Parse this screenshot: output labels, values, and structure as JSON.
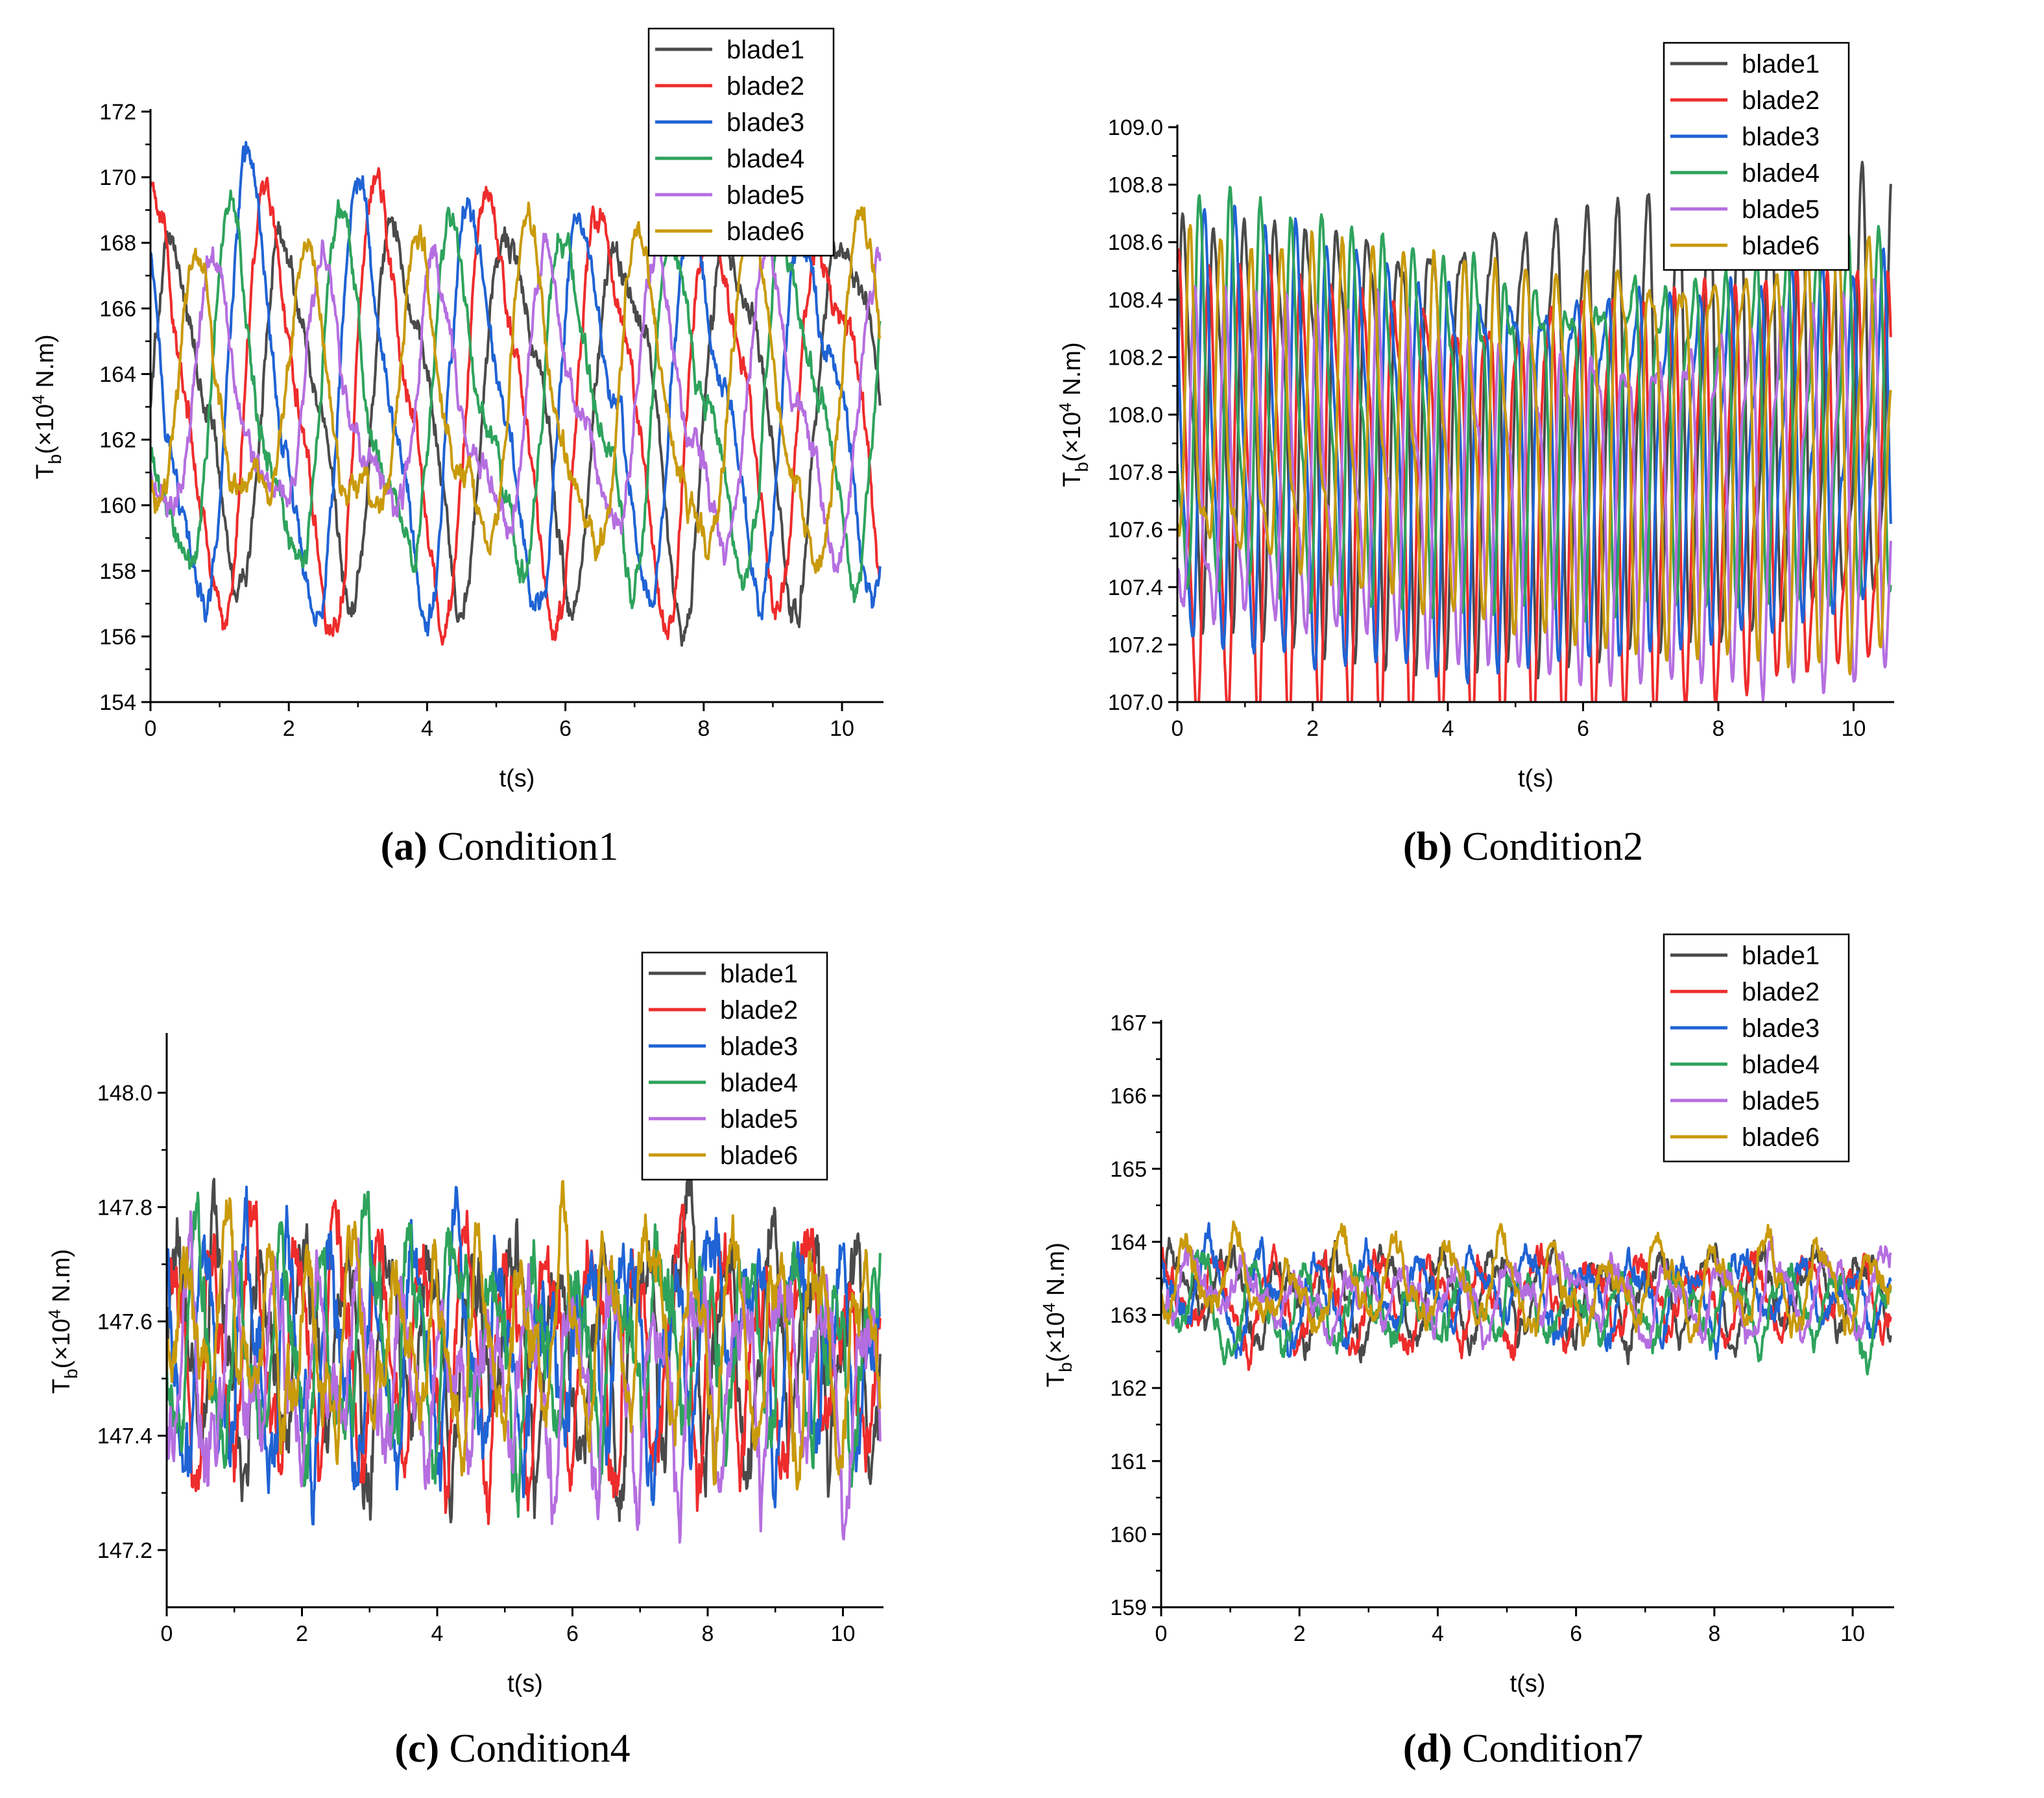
{
  "figure": {
    "colors": {
      "blade1": "#4a4a4a",
      "blade2": "#ee2c2c",
      "blade3": "#1f63d4",
      "blade4": "#2ea35c",
      "blade5": "#b56ee0",
      "blade6": "#c99a0a"
    }
  },
  "chart_data": [
    {
      "type": "line",
      "panel": "a",
      "caption_letter": "(a)",
      "caption_text": "Condition1",
      "xlabel": "t(s)",
      "ylabel_main": "T",
      "ylabel_sub": "b",
      "ylabel_unit_pre": "(×10",
      "ylabel_unit_exp": "4",
      "ylabel_unit_post": " N.m)",
      "xlim": [
        0,
        10.6
      ],
      "ylim": [
        154,
        172
      ],
      "xticks": [
        0,
        2,
        4,
        6,
        8,
        10
      ],
      "yticks": [
        154,
        156,
        158,
        160,
        162,
        164,
        166,
        168,
        170,
        172
      ],
      "y_decimals": 0,
      "legend_position": "top-right",
      "series": [
        {
          "name": "blade1",
          "mean": 163.0,
          "amp": 4.5,
          "freq": 0.62,
          "phase": 0.0,
          "noise": 0.8
        },
        {
          "name": "blade2",
          "mean": 163.0,
          "amp": 5.2,
          "freq": 0.62,
          "phase": 1.05,
          "noise": 0.8
        },
        {
          "name": "blade3",
          "mean": 163.0,
          "amp": 5.5,
          "freq": 0.62,
          "phase": 2.1,
          "noise": 0.8
        },
        {
          "name": "blade4",
          "mean": 163.0,
          "amp": 5.3,
          "freq": 0.62,
          "phase": 3.14,
          "noise": 0.8
        },
        {
          "name": "blade5",
          "mean": 163.0,
          "amp": 4.0,
          "freq": 0.62,
          "phase": 4.19,
          "noise": 0.8
        },
        {
          "name": "blade6",
          "mean": 163.0,
          "amp": 4.2,
          "freq": 0.62,
          "phase": 5.24,
          "noise": 0.8
        }
      ]
    },
    {
      "type": "line",
      "panel": "b",
      "caption_letter": "(b)",
      "caption_text": "Condition2",
      "xlabel": "t(s)",
      "ylabel_main": "T",
      "ylabel_sub": "b",
      "ylabel_unit_pre": "(×10",
      "ylabel_unit_exp": "4",
      "ylabel_unit_post": " N.m)",
      "xlim": [
        0,
        10.6
      ],
      "ylim": [
        107.0,
        109.0
      ],
      "xticks": [
        0,
        2,
        4,
        6,
        8,
        10
      ],
      "yticks": [
        107.0,
        107.2,
        107.4,
        107.6,
        107.8,
        108.0,
        108.2,
        108.4,
        108.6,
        108.8,
        109.0
      ],
      "y_decimals": 1,
      "legend_position": "top-right",
      "series": [
        {
          "name": "blade1",
          "mean": 108.0,
          "amp": 0.62,
          "freq": 2.2,
          "phase": 0.0,
          "noise": 0.05
        },
        {
          "name": "blade2",
          "mean": 107.75,
          "amp": 0.62,
          "freq": 2.2,
          "phase": 1.05,
          "noise": 0.05
        },
        {
          "name": "blade3",
          "mean": 107.9,
          "amp": 0.6,
          "freq": 2.2,
          "phase": 2.1,
          "noise": 0.05
        },
        {
          "name": "blade4",
          "mean": 108.0,
          "amp": 0.62,
          "freq": 2.2,
          "phase": 3.14,
          "noise": 0.05
        },
        {
          "name": "blade5",
          "mean": 107.78,
          "amp": 0.6,
          "freq": 2.2,
          "phase": 4.19,
          "noise": 0.05
        },
        {
          "name": "blade6",
          "mean": 107.95,
          "amp": 0.58,
          "freq": 2.2,
          "phase": 5.24,
          "noise": 0.05
        }
      ]
    },
    {
      "type": "line",
      "panel": "c",
      "caption_letter": "(c)",
      "caption_text": "Condition4",
      "xlabel": "t(s)",
      "ylabel_main": "T",
      "ylabel_sub": "b",
      "ylabel_unit_pre": "(×10",
      "ylabel_unit_exp": "4",
      "ylabel_unit_post": " N.m)",
      "xlim": [
        0,
        10.6
      ],
      "ylim": [
        147.1,
        148.1
      ],
      "xticks": [
        0,
        2,
        4,
        6,
        8,
        10
      ],
      "yticks": [
        147.2,
        147.4,
        147.6,
        147.8,
        148.0
      ],
      "y_decimals": 1,
      "legend_position": "top-right",
      "series": [
        {
          "name": "blade1",
          "mean": 147.56,
          "amp": 0.15,
          "freq": 1.6,
          "phase": 0.0,
          "noise": 0.12
        },
        {
          "name": "blade2",
          "mean": 147.54,
          "amp": 0.15,
          "freq": 1.6,
          "phase": 1.05,
          "noise": 0.12
        },
        {
          "name": "blade3",
          "mean": 147.56,
          "amp": 0.15,
          "freq": 1.6,
          "phase": 2.1,
          "noise": 0.12
        },
        {
          "name": "blade4",
          "mean": 147.55,
          "amp": 0.15,
          "freq": 1.6,
          "phase": 3.14,
          "noise": 0.12
        },
        {
          "name": "blade5",
          "mean": 147.5,
          "amp": 0.15,
          "freq": 1.6,
          "phase": 4.19,
          "noise": 0.12
        },
        {
          "name": "blade6",
          "mean": 147.58,
          "amp": 0.13,
          "freq": 1.6,
          "phase": 5.24,
          "noise": 0.1
        }
      ]
    },
    {
      "type": "line",
      "panel": "d",
      "caption_letter": "(d)",
      "caption_text": "Condition7",
      "xlabel": "t(s)",
      "ylabel_main": "T",
      "ylabel_sub": "b",
      "ylabel_unit_pre": "(×10",
      "ylabel_unit_exp": "4",
      "ylabel_unit_post": " N.m)",
      "xlim": [
        0,
        10.6
      ],
      "ylim": [
        159,
        167
      ],
      "xticks": [
        0,
        2,
        4,
        6,
        8,
        10
      ],
      "yticks": [
        159,
        160,
        161,
        162,
        163,
        164,
        165,
        166,
        167
      ],
      "y_decimals": 0,
      "legend_position": "top-right",
      "series": [
        {
          "name": "blade1",
          "mean": 163.3,
          "amp": 0.45,
          "freq": 1.3,
          "phase": 0.0,
          "noise": 0.35
        },
        {
          "name": "blade2",
          "mean": 163.2,
          "amp": 0.45,
          "freq": 1.3,
          "phase": 1.05,
          "noise": 0.35
        },
        {
          "name": "blade3",
          "mean": 163.3,
          "amp": 0.45,
          "freq": 1.3,
          "phase": 2.1,
          "noise": 0.35
        },
        {
          "name": "blade4",
          "mean": 163.1,
          "amp": 0.45,
          "freq": 1.3,
          "phase": 3.14,
          "noise": 0.35
        },
        {
          "name": "blade5",
          "mean": 163.3,
          "amp": 0.45,
          "freq": 1.3,
          "phase": 4.19,
          "noise": 0.35
        },
        {
          "name": "blade6",
          "mean": 163.4,
          "amp": 0.45,
          "freq": 1.3,
          "phase": 5.24,
          "noise": 0.35
        }
      ]
    }
  ]
}
